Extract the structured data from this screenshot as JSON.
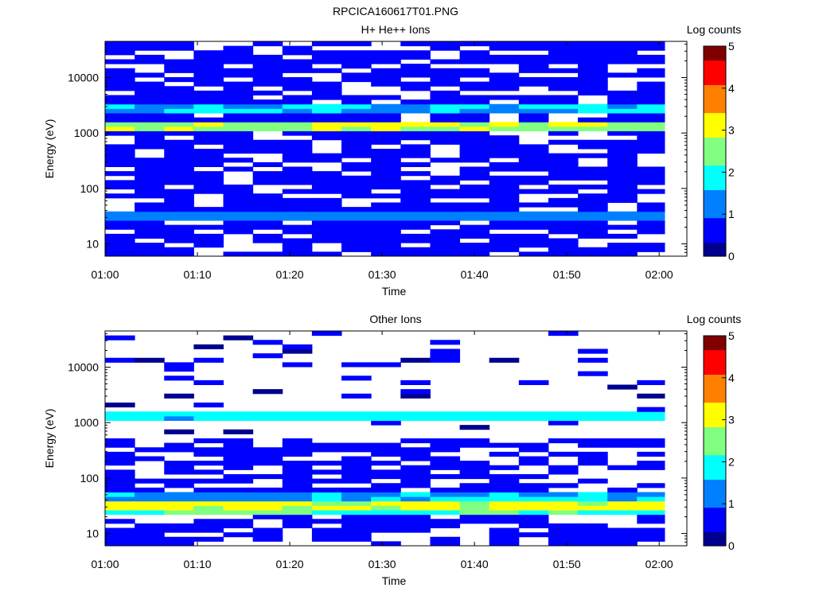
{
  "figure_title": "RPCICA160617T01.PNG",
  "colormap": [
    "#00008f",
    "#0000ff",
    "#0080ff",
    "#00ffff",
    "#80ff80",
    "#ffff00",
    "#ff8000",
    "#ff0000",
    "#800000"
  ],
  "chart_data": [
    {
      "type": "heatmap",
      "title": "H+ He++ Ions",
      "xlabel": "Time",
      "ylabel": "Energy (eV)",
      "y_scale": "log",
      "ylim": [
        6,
        45000
      ],
      "xlim": [
        "01:00",
        "02:03"
      ],
      "xticks": [
        "01:00",
        "01:10",
        "01:20",
        "01:30",
        "01:40",
        "01:50",
        "02:00"
      ],
      "yticks": [
        10,
        100,
        1000,
        10000
      ],
      "ytick_labels": [
        "10",
        "100",
        "1000",
        "10000"
      ],
      "colorbar": {
        "label": "Log counts",
        "range": [
          0,
          5
        ],
        "ticks": [
          "0",
          "1",
          "2",
          "3",
          "4",
          "5"
        ]
      },
      "time_bins_minutes": 3.2,
      "n_time_bins": 19,
      "bands": [
        {
          "energy_eV": [
            1150,
            1600
          ],
          "log_counts": 2.7
        },
        {
          "energy_eV": [
            1050,
            1150
          ],
          "log_counts": 2.0
        },
        {
          "energy_eV": [
            2500,
            3200
          ],
          "log_counts": 1.5
        },
        {
          "energy_eV": [
            28,
            40
          ],
          "log_counts": 1.3
        },
        {
          "energy_eV": [
            20000,
            22000
          ],
          "log_counts": 1.3
        }
      ],
      "background": {
        "energy_eV": [
          6,
          45000
        ],
        "log_counts": 0.55,
        "fill_fraction": 0.72
      }
    },
    {
      "type": "heatmap",
      "title": "Other Ions",
      "xlabel": "Time",
      "ylabel": "Energy (eV)",
      "y_scale": "log",
      "ylim": [
        6,
        45000
      ],
      "xlim": [
        "01:00",
        "02:03"
      ],
      "xticks": [
        "01:00",
        "01:10",
        "01:20",
        "01:30",
        "01:40",
        "01:50",
        "02:00"
      ],
      "yticks": [
        10,
        100,
        1000,
        10000
      ],
      "ytick_labels": [
        "10",
        "100",
        "1000",
        "10000"
      ],
      "colorbar": {
        "label": "Log counts",
        "range": [
          0,
          5
        ],
        "ticks": [
          "0",
          "1",
          "2",
          "3",
          "4",
          "5"
        ]
      },
      "time_bins_minutes": 3.2,
      "n_time_bins": 19,
      "bands": [
        {
          "energy_eV": [
            28,
            42
          ],
          "log_counts": 3.0
        },
        {
          "energy_eV": [
            22,
            28
          ],
          "log_counts": 2.2
        },
        {
          "energy_eV": [
            42,
            55
          ],
          "log_counts": 1.5
        },
        {
          "energy_eV": [
            1150,
            1500
          ],
          "log_counts": 1.8
        }
      ],
      "background_low": {
        "energy_eV": [
          6,
          500
        ],
        "log_counts": 0.5,
        "fill_fraction": 0.6
      },
      "background_high": {
        "energy_eV": [
          500,
          45000
        ],
        "log_counts": 0.3,
        "fill_fraction": 0.12
      }
    }
  ]
}
